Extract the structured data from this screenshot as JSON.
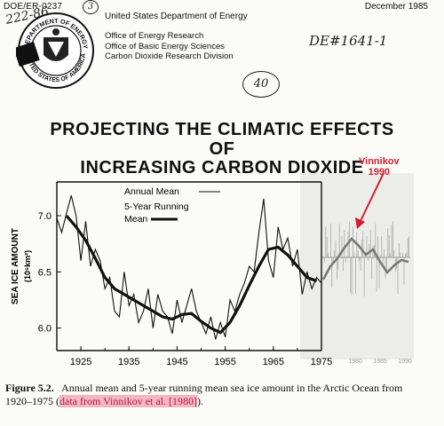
{
  "header": {
    "doc_id": "DOE/ER-0237",
    "agency": "United States Department of Energy",
    "date": "December 1985",
    "offices": [
      "Office of Energy Research",
      "Office of Basic Energy Sciences",
      "Carbon Dioxide Research Division"
    ],
    "seal_text_top": "DEPARTMENT OF ENERGY",
    "seal_text_bottom": "UNITED STATES OF AMERICA"
  },
  "handwriting": {
    "number_left": "222-86",
    "circled_3": "3",
    "number_right": "DE#1641-1",
    "circled_40": "40"
  },
  "title_lines": [
    "PROJECTING THE CLIMATIC EFFECTS",
    "OF",
    "INCREASING CARBON DIOXIDE"
  ],
  "chart_data": {
    "type": "line",
    "ylabel": "SEA ICE AMOUNT",
    "yunits": "(10⁶km²)",
    "x_ticks": [
      1925,
      1935,
      1945,
      1955,
      1965,
      1975
    ],
    "y_ticks": [
      6.0,
      6.5,
      7.0
    ],
    "xlim": [
      1920,
      1975
    ],
    "ylim": [
      5.8,
      7.3
    ],
    "legend": [
      "Annual Mean",
      "5-Year Running Mean"
    ],
    "legend_placement": "top-center",
    "series": [
      {
        "name": "Annual Mean",
        "x": [
          1920,
          1921,
          1922,
          1923,
          1924,
          1925,
          1926,
          1927,
          1928,
          1929,
          1930,
          1931,
          1932,
          1933,
          1934,
          1935,
          1936,
          1937,
          1938,
          1939,
          1940,
          1941,
          1942,
          1943,
          1944,
          1945,
          1946,
          1947,
          1948,
          1949,
          1950,
          1951,
          1952,
          1953,
          1954,
          1955,
          1956,
          1957,
          1958,
          1959,
          1960,
          1961,
          1962,
          1963,
          1964,
          1965,
          1966,
          1967,
          1968,
          1969,
          1970,
          1971,
          1972,
          1973,
          1974,
          1975
        ],
        "y": [
          6.98,
          6.85,
          7.02,
          7.18,
          7.0,
          6.6,
          6.95,
          6.55,
          6.7,
          6.6,
          6.35,
          6.45,
          6.15,
          6.1,
          6.5,
          6.2,
          6.3,
          6.05,
          6.15,
          6.35,
          6.0,
          6.3,
          6.15,
          6.1,
          5.95,
          6.25,
          6.05,
          6.2,
          6.35,
          6.15,
          6.05,
          5.95,
          6.1,
          5.9,
          6.05,
          5.92,
          6.25,
          6.15,
          6.3,
          6.4,
          6.55,
          6.5,
          6.85,
          7.15,
          6.6,
          6.45,
          6.9,
          6.7,
          6.8,
          6.55,
          6.7,
          6.3,
          6.5,
          6.35,
          6.45,
          6.4
        ]
      },
      {
        "name": "5-Year Running Mean",
        "x": [
          1922,
          1924,
          1926,
          1928,
          1930,
          1932,
          1934,
          1936,
          1938,
          1940,
          1942,
          1944,
          1946,
          1948,
          1950,
          1952,
          1954,
          1956,
          1958,
          1960,
          1962,
          1964,
          1966,
          1968,
          1970,
          1972,
          1974
        ],
        "y": [
          7.0,
          6.9,
          6.78,
          6.62,
          6.45,
          6.35,
          6.3,
          6.25,
          6.2,
          6.15,
          6.1,
          6.08,
          6.12,
          6.13,
          6.06,
          6.0,
          5.96,
          6.05,
          6.2,
          6.38,
          6.55,
          6.7,
          6.72,
          6.65,
          6.55,
          6.45,
          6.42
        ]
      }
    ]
  },
  "overlay": {
    "label_line1": "Vinnikov",
    "label_line2": "1990",
    "x_ticks": [
      "1980",
      "1985",
      "1990"
    ],
    "accent_color": "#d12030"
  },
  "caption": {
    "figure": "Figure 5.2.",
    "text": "Annual mean and 5-year running mean sea ice amount in the Arctic Ocean from 1920–1975 (",
    "highlight": "data from Vinnikov et al. [1980]",
    "end": ")."
  }
}
